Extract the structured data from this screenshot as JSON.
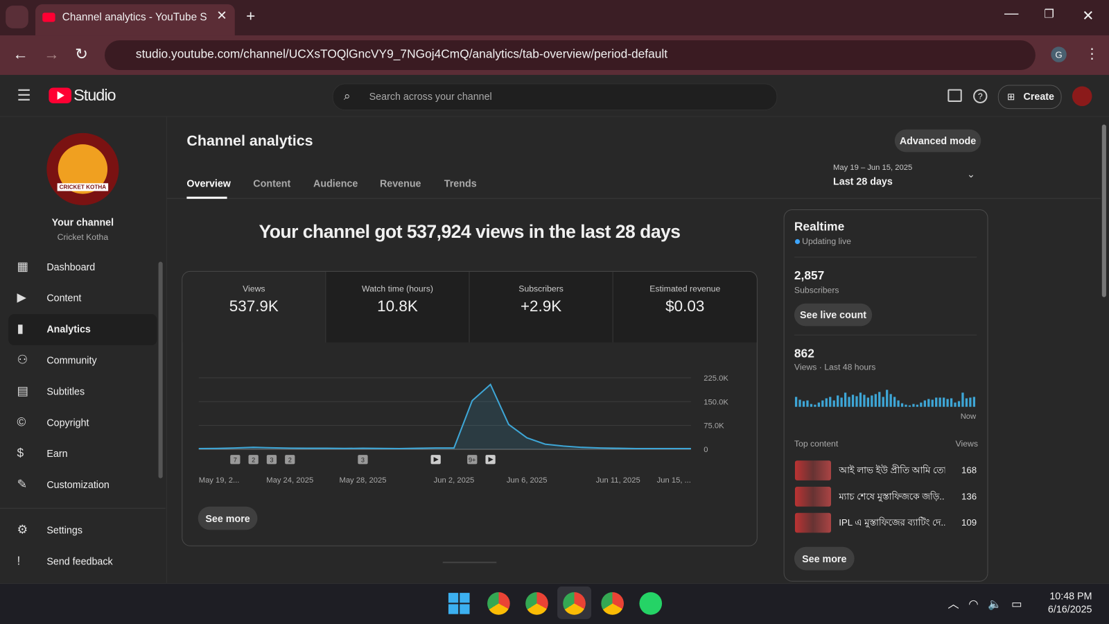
{
  "browser": {
    "tab_title": "Channel analytics - YouTube Stu",
    "url": "studio.youtube.com/channel/UCXsTOQlGncVY9_7NGoj4CmQ/analytics/tab-overview/period-default",
    "profile": "G"
  },
  "header": {
    "logo": "Studio",
    "search_placeholder": "Search across your channel",
    "create": "Create"
  },
  "sidebar": {
    "avatar_text": "CRICKET KOTHA",
    "channel_label": "Your channel",
    "channel_name": "Cricket Kotha",
    "items": [
      "Dashboard",
      "Content",
      "Analytics",
      "Community",
      "Subtitles",
      "Copyright",
      "Earn",
      "Customization"
    ],
    "bottom_items": [
      "Settings",
      "Send feedback"
    ]
  },
  "page": {
    "title": "Channel analytics",
    "advanced_mode": "Advanced mode",
    "tabs": [
      "Overview",
      "Content",
      "Audience",
      "Revenue",
      "Trends"
    ],
    "period_range": "May 19 – Jun 15, 2025",
    "period_label": "Last 28 days",
    "headline": "Your channel got 537,924 views in the last 28 days",
    "metrics": [
      {
        "label": "Views",
        "value": "537.9K"
      },
      {
        "label": "Watch time (hours)",
        "value": "10.8K"
      },
      {
        "label": "Subscribers",
        "value": "+2.9K"
      },
      {
        "label": "Estimated revenue",
        "value": "$0.03"
      }
    ],
    "markers": [
      "7",
      "2",
      "3",
      "2",
      "3",
      "9+"
    ],
    "see_more": "See more"
  },
  "realtime": {
    "title": "Realtime",
    "status": "Updating live",
    "subscribers": "2,857",
    "subscribers_label": "Subscribers",
    "see_live_count": "See live count",
    "views": "862",
    "views_label": "Views · Last 48 hours",
    "now": "Now",
    "top_content": "Top content",
    "views_col": "Views",
    "items": [
      {
        "title": "আই লাভ ইউ প্রীতি আমি তো...",
        "views": "168"
      },
      {
        "title": "ম্যাচ শেষে মুস্তাফিজকে জড়ি...",
        "views": "136"
      },
      {
        "title": "IPL এ মুস্তাফিজের ব্যাটিং দে...",
        "views": "109"
      }
    ],
    "see_more": "See more"
  },
  "taskbar": {
    "time": "10:48 PM",
    "date": "6/16/2025"
  },
  "chart_data": [
    {
      "type": "line",
      "color": "#3ea6d6",
      "categories": [
        "May 19, 2...",
        null,
        null,
        null,
        null,
        "May 24, 2025",
        null,
        null,
        null,
        "May 28, 2025",
        null,
        null,
        null,
        null,
        "Jun 2, 2025",
        null,
        null,
        null,
        "Jun 6, 2025",
        null,
        null,
        null,
        null,
        "Jun 11, 2025",
        null,
        null,
        null,
        "Jun 15, ..."
      ],
      "values": [
        2000,
        2500,
        4000,
        6000,
        4500,
        3500,
        3000,
        3000,
        2500,
        3000,
        2500,
        2000,
        3000,
        4000,
        4000,
        153000,
        204000,
        78000,
        36000,
        16000,
        10000,
        6000,
        4000,
        3000,
        2000,
        2000,
        2000,
        2000
      ],
      "ylim": [
        0,
        225000
      ],
      "yticks": [
        0,
        {
          "value": 75000,
          "label": "75.0K"
        },
        {
          "value": 150000,
          "label": "150.0K"
        },
        {
          "value": 225000,
          "label": "225.0K"
        }
      ],
      "grid": true
    },
    {
      "type": "bar",
      "color": "#3ea6d6",
      "ylim": [
        0,
        25
      ],
      "values": [
        14,
        10,
        8,
        9,
        4,
        3,
        6,
        9,
        12,
        14,
        9,
        16,
        13,
        20,
        14,
        17,
        15,
        20,
        17,
        13,
        16,
        18,
        21,
        14,
        24,
        18,
        14,
        9,
        5,
        3,
        2,
        4,
        3,
        6,
        9,
        11,
        10,
        13,
        13,
        13,
        11,
        12,
        6,
        8,
        20,
        12,
        13,
        14
      ]
    }
  ]
}
